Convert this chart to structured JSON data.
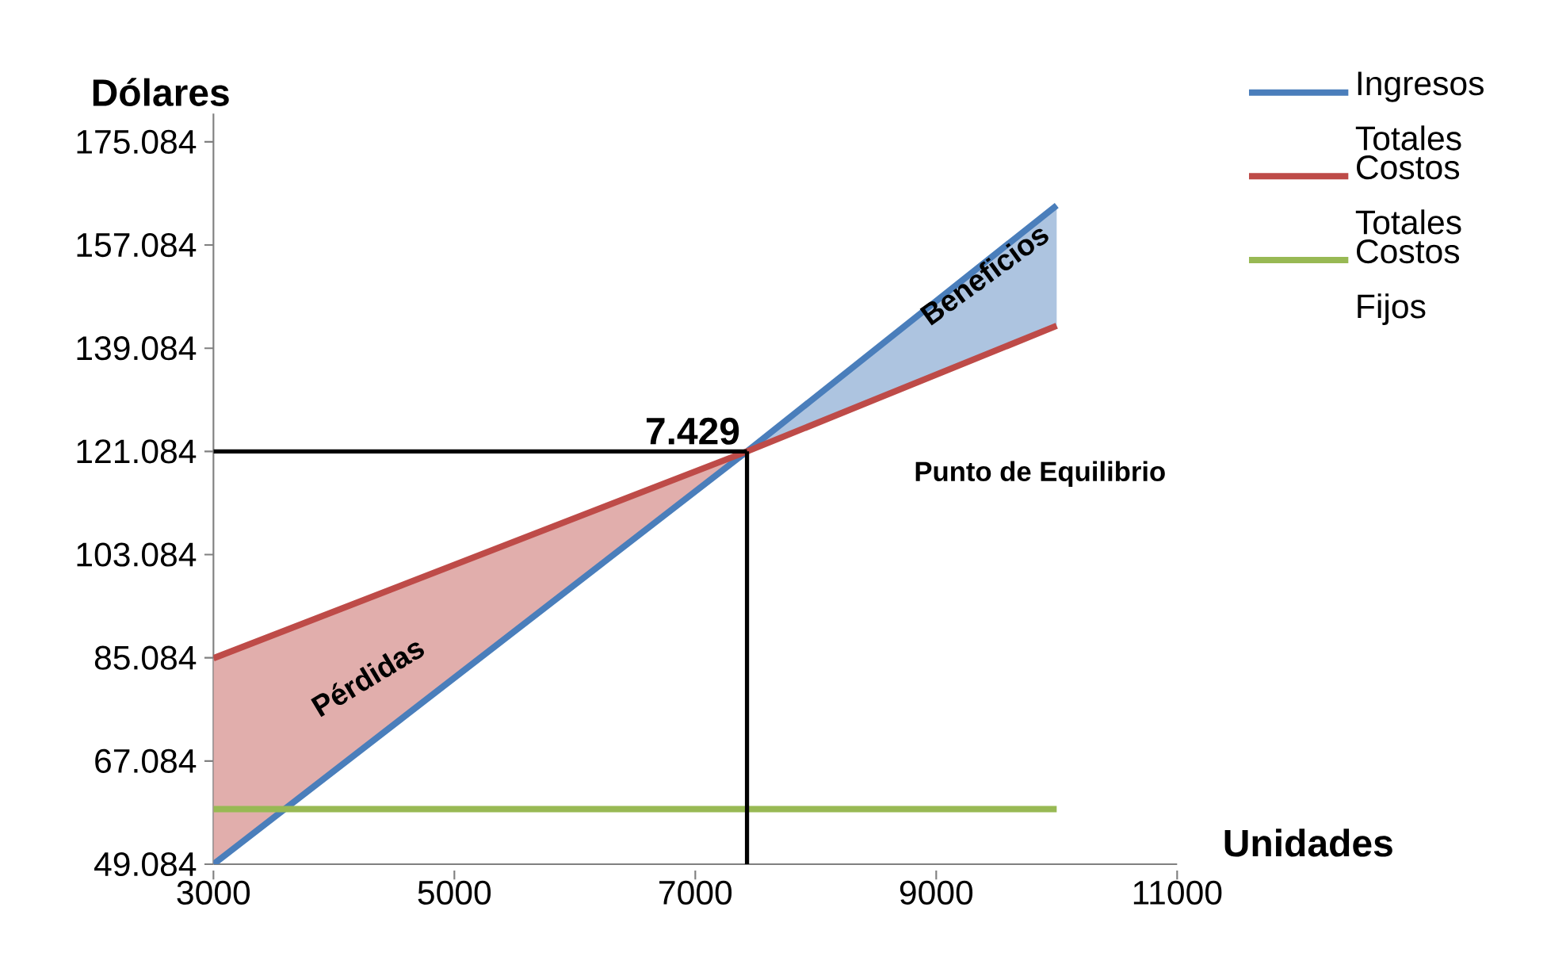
{
  "chart_data": {
    "type": "line",
    "xlabel": "Unidades",
    "ylabel": "Dólares",
    "xlim": [
      3000,
      11000
    ],
    "xticks": [
      3000,
      5000,
      7000,
      9000,
      11000
    ],
    "ylim": [
      49.084,
      180
    ],
    "yticks": [
      49.084,
      67.084,
      85.084,
      103.084,
      121.084,
      139.084,
      157.084,
      175.084
    ],
    "series": [
      {
        "name": "Ingresos Totales",
        "color": "#4a7ebb",
        "x": [
          3000,
          7429,
          10000
        ],
        "values": [
          49.084,
          121.084,
          164
        ],
        "lower": [
          null,
          121.084,
          143
        ],
        "upper": [
          null,
          121.084,
          164
        ]
      },
      {
        "name": "Costos Totales",
        "color": "#be4b48",
        "x": [
          3000,
          7429,
          10000
        ],
        "values": [
          85,
          121.084,
          143
        ],
        "lower": [
          49.084,
          121.084,
          null
        ],
        "upper": [
          85,
          121.084,
          null
        ]
      },
      {
        "name": "Costos Fijos",
        "color": "#98b954",
        "x": [
          3000,
          10000
        ],
        "values": [
          58.7,
          58.7
        ]
      },
      {
        "color": "#000000",
        "x": [
          3000,
          7429
        ],
        "values": [
          121.084,
          121.084
        ]
      },
      {
        "color": "#000000",
        "x": [
          7429,
          7429
        ],
        "values": [
          121.084,
          49.084
        ]
      }
    ],
    "annotations": [
      {
        "text": "7.429",
        "x": 7429,
        "y": 121.084
      },
      "Punto de Equilibrio",
      "Pérdidas",
      {
        "text": "Beneficios",
        "x": 9400,
        "y": 152
      }
    ],
    "legend": "right",
    "grid": false,
    "marker": "none",
    "line_style": "solid"
  }
}
